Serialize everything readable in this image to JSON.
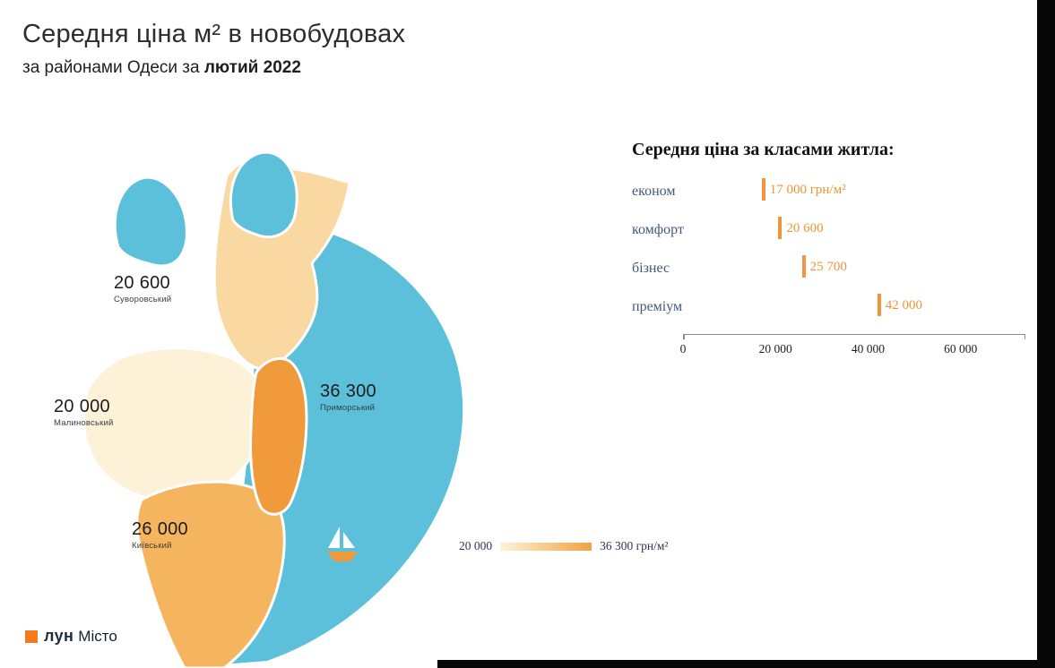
{
  "page": {
    "title": "Середня ціна м² в новобудовах",
    "subtitle_prefix": "за районами Одеси за ",
    "subtitle_bold": "лютий 2022"
  },
  "map": {
    "districts": [
      {
        "name": "Суворовський",
        "value": "20 600"
      },
      {
        "name": "Малиновський",
        "value": "20 000"
      },
      {
        "name": "Київський",
        "value": "26 000"
      },
      {
        "name": "Приморський",
        "value": "36 300"
      }
    ],
    "legend": {
      "min_label": "20 000",
      "max_label": "36 300 грн/м²"
    },
    "colors": {
      "sea": "#5cc0da",
      "suvorovskyi": "#f9d9a1",
      "malynovskyi": "#fdf2d8",
      "kyivskyi": "#f5b55e",
      "prymorskyi": "#f09a3c",
      "boat_hull": "#f09a3c",
      "boat_sail": "#ffffff",
      "accent_orange": "#ee9436"
    }
  },
  "class_chart": {
    "title": "Середня ціна за класами житла:",
    "rows": [
      {
        "label": "економ",
        "value": 17000,
        "value_label": "17 000 грн/м²"
      },
      {
        "label": "комфорт",
        "value": 20600,
        "value_label": "20 600"
      },
      {
        "label": "бізнес",
        "value": 25700,
        "value_label": "25 700"
      },
      {
        "label": "преміум",
        "value": 42000,
        "value_label": "42 000"
      }
    ],
    "axis": {
      "ticks": [
        "0",
        "20 000",
        "40 000",
        "60 000"
      ],
      "tick_values": [
        0,
        20000,
        40000,
        60000
      ],
      "max": 74000
    }
  },
  "logo": {
    "bold": "лун",
    "regular": "Місто"
  },
  "chart_data": [
    {
      "type": "heatmap",
      "subtype": "choropleth-map",
      "title": "Середня ціна м² в новобудовах за районами Одеси за лютий 2022",
      "unit": "грн/м²",
      "categories": [
        "Суворовський",
        "Малиновський",
        "Київський",
        "Приморський"
      ],
      "values": [
        20600,
        20000,
        26000,
        36300
      ],
      "color_scale": {
        "min": 20000,
        "max": 36300,
        "min_color": "#fdf2d8",
        "max_color": "#f09a3c"
      }
    },
    {
      "type": "scatter",
      "subtype": "tick-marks",
      "title": "Середня ціна за класами житла:",
      "categories": [
        "економ",
        "комфорт",
        "бізнес",
        "преміум"
      ],
      "values": [
        17000,
        20600,
        25700,
        42000
      ],
      "unit": "грн/м²",
      "xlim": [
        0,
        74000
      ],
      "x_ticks": [
        0,
        20000,
        40000,
        60000
      ],
      "grid": false,
      "legend_position": "none"
    }
  ]
}
